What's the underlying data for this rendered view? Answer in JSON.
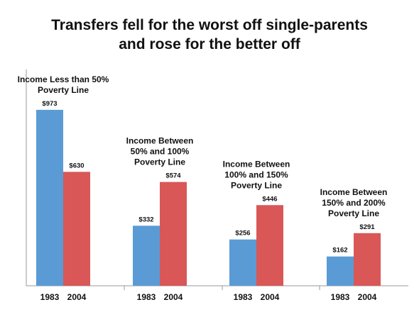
{
  "chart_data": {
    "type": "bar",
    "title_lines": [
      "Transfers fell for the worst off single-parents",
      "and rose for the better off"
    ],
    "groups": [
      {
        "label_lines": [
          "Income Less than 50%",
          "Poverty Line"
        ],
        "categories": [
          "1983",
          "2004"
        ],
        "values": [
          973,
          630
        ],
        "value_labels": [
          "$973",
          "$630"
        ]
      },
      {
        "label_lines": [
          "Income Between",
          "50% and 100%",
          "Poverty Line"
        ],
        "categories": [
          "1983",
          "2004"
        ],
        "values": [
          332,
          574
        ],
        "value_labels": [
          "$332",
          "$574"
        ]
      },
      {
        "label_lines": [
          "Income Between",
          "100% and 150%",
          "Poverty Line"
        ],
        "categories": [
          "1983",
          "2004"
        ],
        "values": [
          256,
          446
        ],
        "value_labels": [
          "$256",
          "$446"
        ]
      },
      {
        "label_lines": [
          "Income Between",
          "150% and 200%",
          "Poverty Line"
        ],
        "categories": [
          "1983",
          "2004"
        ],
        "values": [
          162,
          291
        ],
        "value_labels": [
          "$162",
          "$291"
        ]
      }
    ],
    "colors": {
      "1983": "#5b9bd5",
      "2004": "#d95757"
    },
    "ylim": [
      0,
      1000
    ],
    "grid": false,
    "legend": "none"
  }
}
